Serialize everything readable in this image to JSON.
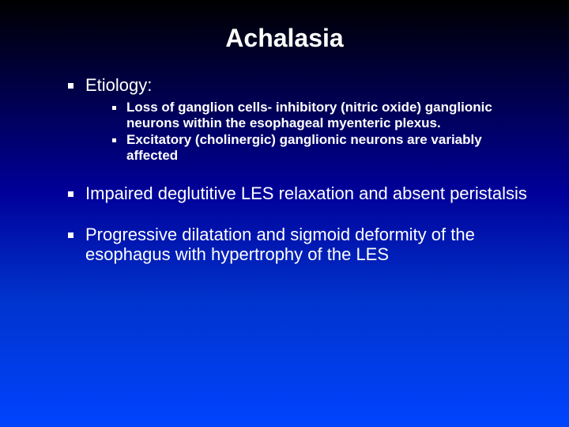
{
  "slide": {
    "title": "Achalasia",
    "background_gradient": [
      "#000000",
      "#000033",
      "#000099",
      "#0033cc",
      "#0044ff"
    ],
    "text_color": "#ffffff",
    "title_fontsize": 32,
    "bullet_fontsize": 22,
    "sub_bullet_fontsize": 17,
    "bullets": [
      {
        "text": "Etiology:",
        "sub": [
          "Loss of ganglion cells- inhibitory (nitric oxide) ganglionic neurons within the esophageal myenteric plexus.",
          "Excitatory (cholinergic) ganglionic neurons are variably affected"
        ]
      },
      {
        "text": "Impaired deglutitive LES relaxation and absent peristalsis",
        "sub": []
      },
      {
        "text": "Progressive dilatation and sigmoid deformity of the esophagus with hypertrophy of the LES",
        "sub": []
      }
    ]
  }
}
